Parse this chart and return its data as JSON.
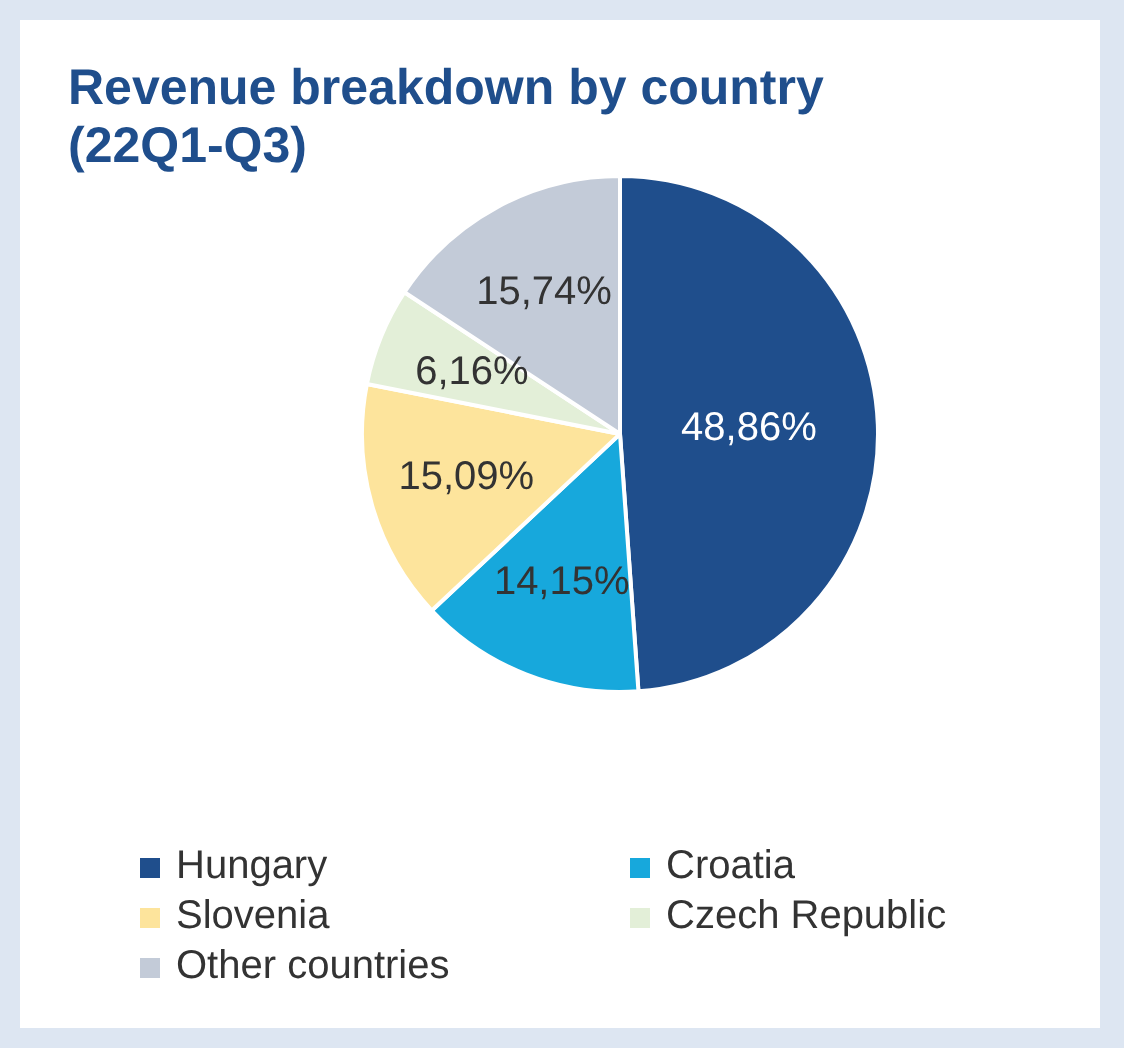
{
  "chart_data": {
    "type": "pie",
    "title": "Revenue breakdown by country (22Q1-Q3)",
    "categories": [
      "Hungary",
      "Croatia",
      "Slovenia",
      "Czech Republic",
      "Other countries"
    ],
    "values": [
      48.86,
      14.15,
      15.09,
      6.16,
      15.74
    ],
    "colors": [
      "#1f4e8c",
      "#17a8dc",
      "#fde49c",
      "#e3efd8",
      "#c3cbd8"
    ],
    "value_labels": [
      "48,86%",
      "14,15%",
      "15,09%",
      "6,16%",
      "15,74%"
    ],
    "legend": "bottom"
  }
}
